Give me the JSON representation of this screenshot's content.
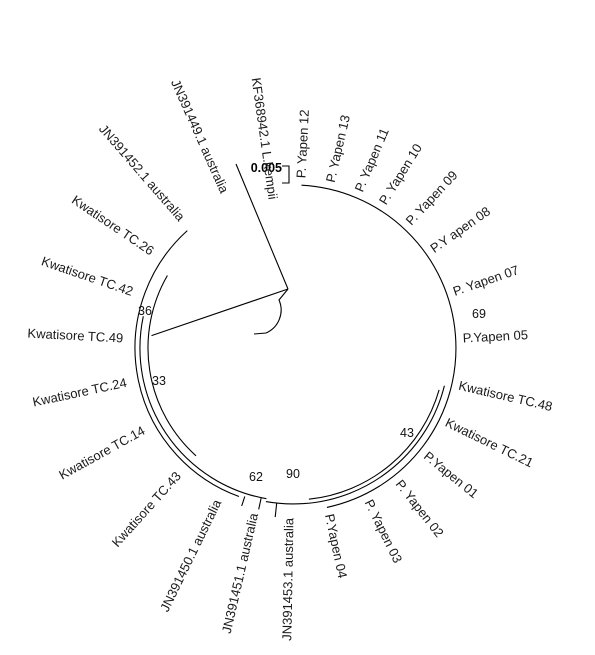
{
  "figure": {
    "type": "circular-phylogenetic-tree",
    "line_color": "#000000",
    "text_color": "#1a1a1a",
    "scale_bar_label": "0.005",
    "taxa": [
      {
        "id": "p-yapen-12",
        "label": "P. Yapen 12"
      },
      {
        "id": "p-yapen-13",
        "label": "P. Yapen 13"
      },
      {
        "id": "p-yapen-11",
        "label": "P. Yapen 11"
      },
      {
        "id": "p-yapen-10",
        "label": "P. Yapen 10"
      },
      {
        "id": "p-yapen-09",
        "label": "P. Yapen 09"
      },
      {
        "id": "p-yapen-08",
        "label": "P.Y apen 08"
      },
      {
        "id": "p-yapen-07",
        "label": "P. Yapen 07"
      },
      {
        "id": "p-yapen-05",
        "label": "P.Yapen 05"
      },
      {
        "id": "kwatisore-tc-48",
        "label": "Kwatisore TC.48"
      },
      {
        "id": "kwatisore-tc-21",
        "label": "Kwatisore TC.21"
      },
      {
        "id": "p-yapen-01",
        "label": "P.Yapen 01"
      },
      {
        "id": "p-yapen-02",
        "label": "P. Yapen 02"
      },
      {
        "id": "p-yapen-03",
        "label": "P. Yapen 03"
      },
      {
        "id": "p-yapen-04",
        "label": "P.Yapen 04"
      },
      {
        "id": "jn391453-1",
        "label": "JN391453.1 australia"
      },
      {
        "id": "jn391451-1",
        "label": "JN391451.1 australia"
      },
      {
        "id": "jn391450-1",
        "label": "JN391450.1 australia"
      },
      {
        "id": "kwatisore-tc-43",
        "label": "Kwatisore TC.43"
      },
      {
        "id": "kwatisore-tc-14",
        "label": "Kwatisore TC.14"
      },
      {
        "id": "kwatisore-tc-24",
        "label": "Kwatisore TC.24"
      },
      {
        "id": "kwatisore-tc-49",
        "label": "Kwatisore TC.49"
      },
      {
        "id": "kwatisore-tc-42",
        "label": "Kwatisore TC.42"
      },
      {
        "id": "kwatisore-tc-26",
        "label": "Kwatisore TC.26"
      },
      {
        "id": "jn391452-1",
        "label": "JN391452.1 australia"
      },
      {
        "id": "jn391449-1",
        "label": "JN391449.1 australia"
      },
      {
        "id": "kf368942-1",
        "label": "KF368942.1 L.kempii"
      }
    ],
    "bootstrap_values": [
      {
        "id": "node-69",
        "label": "69"
      },
      {
        "id": "node-43",
        "label": "43"
      },
      {
        "id": "node-90",
        "label": "90"
      },
      {
        "id": "node-62",
        "label": "62"
      },
      {
        "id": "node-33",
        "label": "33"
      },
      {
        "id": "node-36",
        "label": "36"
      }
    ]
  }
}
